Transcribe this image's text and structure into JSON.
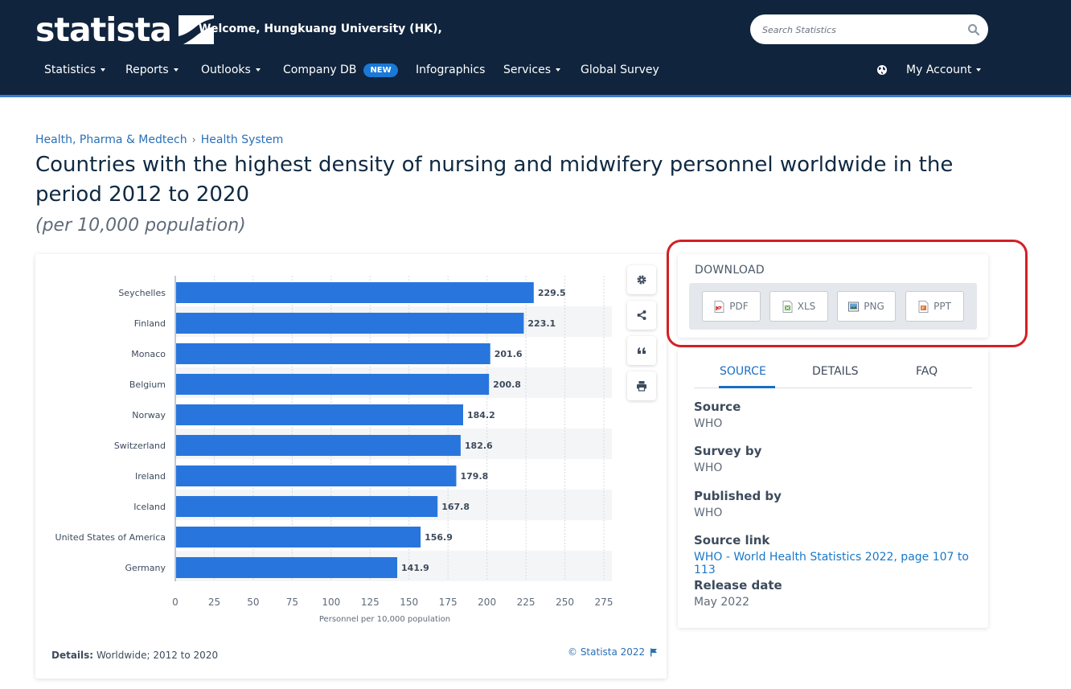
{
  "header": {
    "logo_text": "statista",
    "welcome": "Welcome, Hungkuang University (HK),",
    "search_placeholder": "Search Statistics",
    "nav": [
      {
        "label": "Statistics"
      },
      {
        "label": "Reports"
      },
      {
        "label": "Outlooks"
      },
      {
        "label": "Company DB",
        "badge": "NEW"
      },
      {
        "label": "Infographics"
      },
      {
        "label": "Services"
      },
      {
        "label": "Global Survey"
      }
    ],
    "account_label": "My Account"
  },
  "breadcrumb": [
    "Health, Pharma & Medtech",
    "Health System"
  ],
  "title": "Countries with the highest density of nursing and midwifery personnel worldwide in the period 2012 to 2020",
  "subtitle": "(per 10,000 population)",
  "chart_data": {
    "type": "bar",
    "orientation": "horizontal",
    "categories": [
      "Seychelles",
      "Finland",
      "Monaco",
      "Belgium",
      "Norway",
      "Switzerland",
      "Ireland",
      "Iceland",
      "United States of America",
      "Germany"
    ],
    "values": [
      229.5,
      223.1,
      201.6,
      200.8,
      184.2,
      182.6,
      179.8,
      167.8,
      156.9,
      141.9
    ],
    "xlabel": "Personnel per 10,000 population",
    "ylabel": "",
    "xlim": [
      0,
      275
    ],
    "xticks": [
      0,
      25,
      50,
      75,
      100,
      125,
      150,
      175,
      200,
      225,
      250,
      275
    ],
    "bar_color": "#2876dd",
    "grid": true
  },
  "chart_footer": {
    "details_label": "Details:",
    "details_value": "Worldwide; 2012 to 2020",
    "copyright": "© Statista 2022"
  },
  "download": {
    "title": "DOWNLOAD",
    "buttons": [
      "PDF",
      "XLS",
      "PNG",
      "PPT"
    ]
  },
  "info": {
    "tabs": [
      "SOURCE",
      "DETAILS",
      "FAQ"
    ],
    "active_tab": "SOURCE",
    "fields": [
      {
        "label": "Source",
        "value": "WHO"
      },
      {
        "label": "Survey by",
        "value": "WHO"
      },
      {
        "label": "Published by",
        "value": "WHO"
      },
      {
        "label": "Source link",
        "value": "WHO - World Health Statistics 2022, page 107 to 113"
      },
      {
        "label": "Release date",
        "value": "May 2022"
      }
    ]
  },
  "colors": {
    "header_bg": "#10243d",
    "accent": "#1a6fc2",
    "highlight": "#d41f26"
  }
}
